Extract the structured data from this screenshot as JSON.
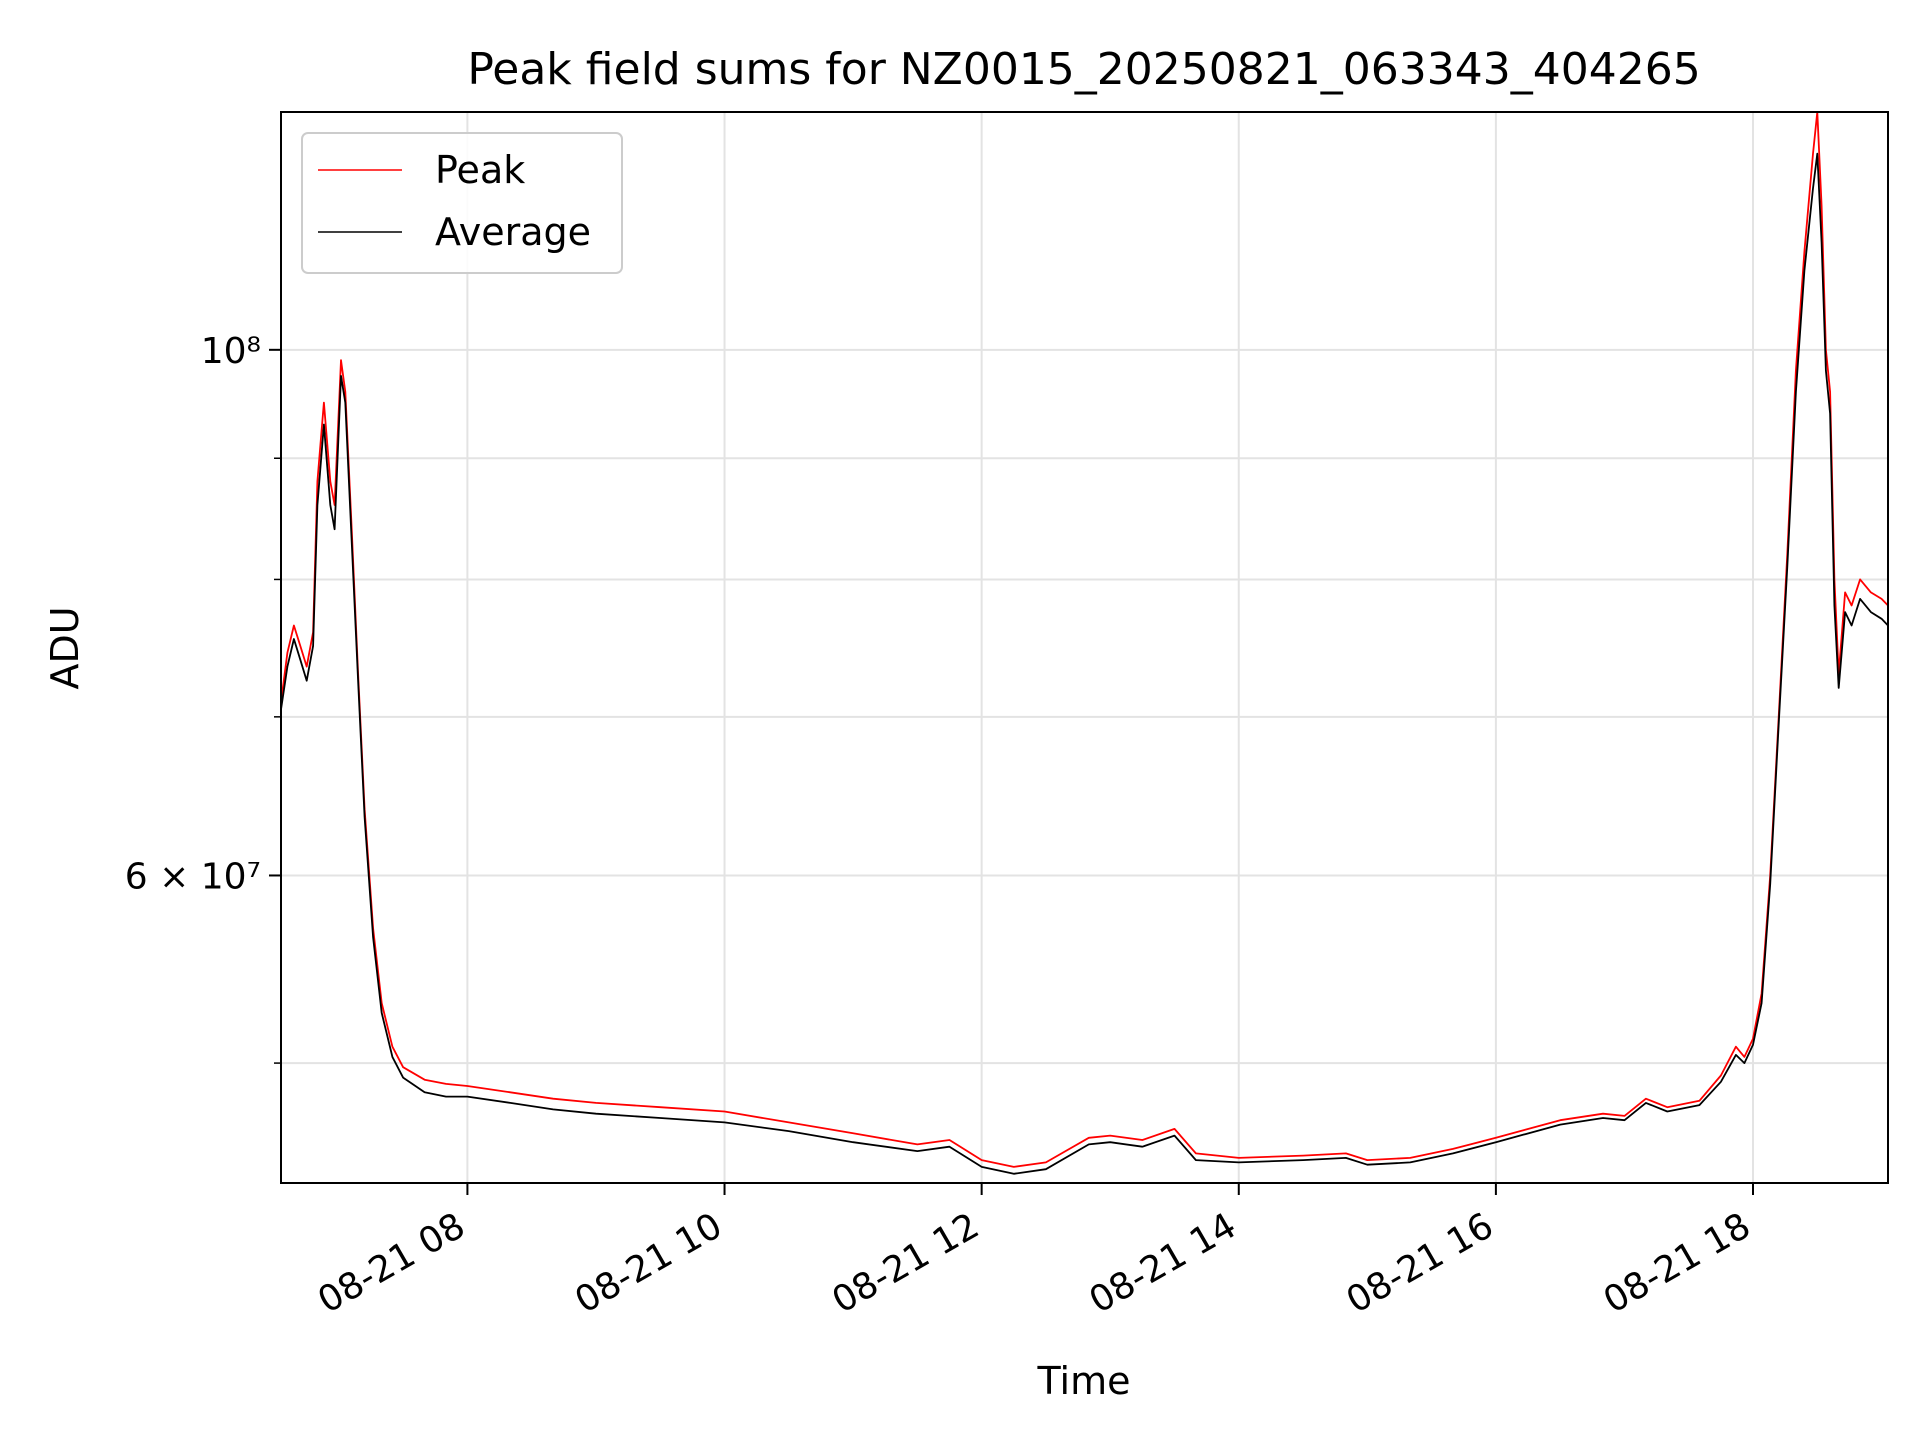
{
  "chart_data": {
    "type": "line",
    "title": "Peak field sums for NZ0015_20250821_063343_404265",
    "xlabel": "Time",
    "ylabel": "ADU",
    "yscale": "log",
    "xlim": [
      "2025-08-21 06:33",
      "2025-08-21 19:03"
    ],
    "ylim": [
      44500000,
      126000000
    ],
    "grid": true,
    "legend_position": "top-left",
    "x_ticks": [
      {
        "t": "2025-08-21 08:00",
        "label": "08-21 08"
      },
      {
        "t": "2025-08-21 10:00",
        "label": "08-21 10"
      },
      {
        "t": "2025-08-21 12:00",
        "label": "08-21 12"
      },
      {
        "t": "2025-08-21 14:00",
        "label": "08-21 14"
      },
      {
        "t": "2025-08-21 16:00",
        "label": "08-21 16"
      },
      {
        "t": "2025-08-21 18:00",
        "label": "08-21 18"
      }
    ],
    "y_major_ticks": [
      {
        "v": 60000000,
        "label": "6 × 10⁷"
      },
      {
        "v": 100000000,
        "label": "10⁸"
      }
    ],
    "y_minor_ticks": [
      50000000,
      70000000,
      80000000,
      90000000
    ],
    "series": [
      {
        "name": "Peak",
        "color": "#ff0000",
        "x": [
          "2025-08-21 06:33",
          "2025-08-21 06:36",
          "2025-08-21 06:39",
          "2025-08-21 06:42",
          "2025-08-21 06:45",
          "2025-08-21 06:48",
          "2025-08-21 06:50",
          "2025-08-21 06:53",
          "2025-08-21 06:56",
          "2025-08-21 06:58",
          "2025-08-21 07:01",
          "2025-08-21 07:03",
          "2025-08-21 07:06",
          "2025-08-21 07:09",
          "2025-08-21 07:12",
          "2025-08-21 07:16",
          "2025-08-21 07:20",
          "2025-08-21 07:25",
          "2025-08-21 07:30",
          "2025-08-21 07:40",
          "2025-08-21 07:50",
          "2025-08-21 08:00",
          "2025-08-21 08:20",
          "2025-08-21 08:40",
          "2025-08-21 09:00",
          "2025-08-21 09:30",
          "2025-08-21 10:00",
          "2025-08-21 10:30",
          "2025-08-21 11:00",
          "2025-08-21 11:30",
          "2025-08-21 11:45",
          "2025-08-21 12:00",
          "2025-08-21 12:15",
          "2025-08-21 12:30",
          "2025-08-21 12:50",
          "2025-08-21 13:00",
          "2025-08-21 13:15",
          "2025-08-21 13:30",
          "2025-08-21 13:40",
          "2025-08-21 14:00",
          "2025-08-21 14:30",
          "2025-08-21 14:50",
          "2025-08-21 15:00",
          "2025-08-21 15:20",
          "2025-08-21 15:40",
          "2025-08-21 16:00",
          "2025-08-21 16:30",
          "2025-08-21 16:50",
          "2025-08-21 17:00",
          "2025-08-21 17:10",
          "2025-08-21 17:20",
          "2025-08-21 17:35",
          "2025-08-21 17:45",
          "2025-08-21 17:52",
          "2025-08-21 17:56",
          "2025-08-21 18:00",
          "2025-08-21 18:04",
          "2025-08-21 18:08",
          "2025-08-21 18:12",
          "2025-08-21 18:16",
          "2025-08-21 18:20",
          "2025-08-21 18:24",
          "2025-08-21 18:28",
          "2025-08-21 18:30",
          "2025-08-21 18:32",
          "2025-08-21 18:34",
          "2025-08-21 18:36",
          "2025-08-21 18:38",
          "2025-08-21 18:40",
          "2025-08-21 18:43",
          "2025-08-21 18:46",
          "2025-08-21 18:50",
          "2025-08-21 18:55",
          "2025-08-21 19:00",
          "2025-08-21 19:03"
        ],
        "y": [
          71000000,
          74500000,
          76500000,
          75000000,
          73500000,
          76000000,
          88000000,
          95000000,
          88000000,
          86000000,
          99000000,
          96000000,
          84000000,
          73000000,
          64000000,
          57000000,
          53000000,
          50800000,
          49800000,
          49200000,
          49000000,
          48900000,
          48600000,
          48300000,
          48100000,
          47900000,
          47700000,
          47200000,
          46700000,
          46200000,
          46400000,
          45500000,
          45200000,
          45400000,
          46500000,
          46600000,
          46400000,
          46900000,
          45800000,
          45600000,
          45700000,
          45800000,
          45500000,
          45600000,
          46000000,
          46500000,
          47300000,
          47600000,
          47500000,
          48300000,
          47900000,
          48200000,
          49400000,
          50800000,
          50300000,
          51200000,
          53500000,
          60000000,
          70000000,
          82000000,
          98000000,
          110000000,
          121000000,
          126000000,
          115000000,
          100000000,
          96000000,
          80000000,
          73000000,
          79000000,
          78000000,
          80000000,
          79000000,
          78500000,
          78000000
        ]
      },
      {
        "name": "Average",
        "color": "#000000",
        "x": [
          "2025-08-21 06:33",
          "2025-08-21 06:36",
          "2025-08-21 06:39",
          "2025-08-21 06:42",
          "2025-08-21 06:45",
          "2025-08-21 06:48",
          "2025-08-21 06:50",
          "2025-08-21 06:53",
          "2025-08-21 06:56",
          "2025-08-21 06:58",
          "2025-08-21 07:01",
          "2025-08-21 07:03",
          "2025-08-21 07:06",
          "2025-08-21 07:09",
          "2025-08-21 07:12",
          "2025-08-21 07:16",
          "2025-08-21 07:20",
          "2025-08-21 07:25",
          "2025-08-21 07:30",
          "2025-08-21 07:40",
          "2025-08-21 07:50",
          "2025-08-21 08:00",
          "2025-08-21 08:20",
          "2025-08-21 08:40",
          "2025-08-21 09:00",
          "2025-08-21 09:30",
          "2025-08-21 10:00",
          "2025-08-21 10:30",
          "2025-08-21 11:00",
          "2025-08-21 11:30",
          "2025-08-21 11:45",
          "2025-08-21 12:00",
          "2025-08-21 12:15",
          "2025-08-21 12:30",
          "2025-08-21 12:50",
          "2025-08-21 13:00",
          "2025-08-21 13:15",
          "2025-08-21 13:30",
          "2025-08-21 13:40",
          "2025-08-21 14:00",
          "2025-08-21 14:30",
          "2025-08-21 14:50",
          "2025-08-21 15:00",
          "2025-08-21 15:20",
          "2025-08-21 15:40",
          "2025-08-21 16:00",
          "2025-08-21 16:30",
          "2025-08-21 16:50",
          "2025-08-21 17:00",
          "2025-08-21 17:10",
          "2025-08-21 17:20",
          "2025-08-21 17:35",
          "2025-08-21 17:45",
          "2025-08-21 17:52",
          "2025-08-21 17:56",
          "2025-08-21 18:00",
          "2025-08-21 18:04",
          "2025-08-21 18:08",
          "2025-08-21 18:12",
          "2025-08-21 18:16",
          "2025-08-21 18:20",
          "2025-08-21 18:24",
          "2025-08-21 18:28",
          "2025-08-21 18:30",
          "2025-08-21 18:32",
          "2025-08-21 18:34",
          "2025-08-21 18:36",
          "2025-08-21 18:38",
          "2025-08-21 18:40",
          "2025-08-21 18:43",
          "2025-08-21 18:46",
          "2025-08-21 18:50",
          "2025-08-21 18:55",
          "2025-08-21 19:00",
          "2025-08-21 19:03"
        ],
        "y": [
          70500000,
          73500000,
          75500000,
          74000000,
          72500000,
          75000000,
          86000000,
          93000000,
          86000000,
          84000000,
          97500000,
          95000000,
          83000000,
          72500000,
          63500000,
          56500000,
          52500000,
          50300000,
          49300000,
          48600000,
          48400000,
          48400000,
          48100000,
          47800000,
          47600000,
          47400000,
          47200000,
          46800000,
          46300000,
          45900000,
          46100000,
          45200000,
          44900000,
          45100000,
          46200000,
          46300000,
          46100000,
          46600000,
          45500000,
          45400000,
          45500000,
          45600000,
          45300000,
          45400000,
          45800000,
          46300000,
          47100000,
          47400000,
          47300000,
          48100000,
          47700000,
          48000000,
          49100000,
          50400000,
          50000000,
          50900000,
          53000000,
          59500000,
          69500000,
          81000000,
          96000000,
          108000000,
          117000000,
          121000000,
          111000000,
          98000000,
          94000000,
          78000000,
          72000000,
          77500000,
          76500000,
          78500000,
          77500000,
          77000000,
          76500000
        ]
      }
    ]
  }
}
